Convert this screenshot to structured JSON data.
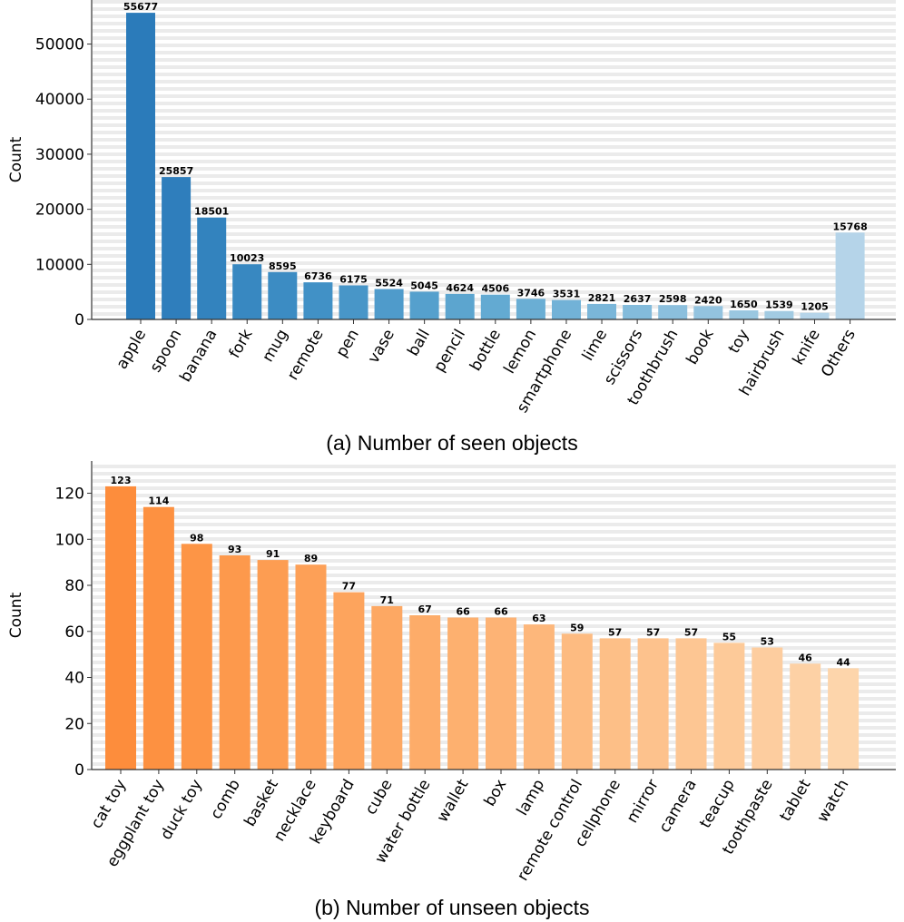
{
  "chart_data": [
    {
      "type": "bar",
      "title": "",
      "caption": "(a) Number of seen objects",
      "xlabel": "",
      "ylabel": "Count",
      "ylim": [
        0,
        58000
      ],
      "yticks": [
        0,
        10000,
        20000,
        30000,
        40000,
        50000
      ],
      "grid": "horizontal dashed",
      "palette": "blues",
      "colors": [
        "#2b7bba",
        "#2f7ebc",
        "#3383be",
        "#3888c1",
        "#3c8cc3",
        "#4191c6",
        "#4896c8",
        "#4f9bcb",
        "#55a0cd",
        "#5ca5cf",
        "#63aad2",
        "#6aaed4",
        "#72b2d7",
        "#7ab6d9",
        "#83bbdb",
        "#8bbfdd",
        "#93c3df",
        "#9ac7e0",
        "#a2cbe2",
        "#b5d4e9"
      ],
      "categories": [
        "apple",
        "spoon",
        "banana",
        "fork",
        "mug",
        "remote",
        "pen",
        "vase",
        "ball",
        "pencil",
        "bottle",
        "lemon",
        "smartphone",
        "lime",
        "scissors",
        "toothbrush",
        "book",
        "toy",
        "hairbrush",
        "knife",
        "Others"
      ],
      "values": [
        55677,
        25857,
        18501,
        10023,
        8595,
        6736,
        6175,
        5524,
        5045,
        4624,
        4506,
        3746,
        3531,
        2821,
        2637,
        2598,
        2420,
        1650,
        1539,
        1205,
        15768
      ]
    },
    {
      "type": "bar",
      "title": "",
      "caption": "(b) Number of unseen objects",
      "xlabel": "",
      "ylabel": "Count",
      "ylim": [
        0,
        134
      ],
      "yticks": [
        0,
        20,
        40,
        60,
        80,
        100,
        120
      ],
      "grid": "horizontal dashed",
      "palette": "oranges",
      "colors": [
        "#fd8d3c",
        "#fd9141",
        "#fd9546",
        "#fd994c",
        "#fd9d52",
        "#fda057",
        "#fda45d",
        "#fda863",
        "#fdac69",
        "#fdb06f",
        "#fdb375",
        "#fdb77b",
        "#fdbb81",
        "#fdbf87",
        "#fdc28d",
        "#fdc693",
        "#fdca99",
        "#fdcd9f",
        "#fdd1a5",
        "#fdd5ab"
      ],
      "categories": [
        "cat toy",
        "eggplant toy",
        "duck toy",
        "comb",
        "basket",
        "necklace",
        "keyboard",
        "cube",
        "water bottle",
        "wallet",
        "box",
        "lamp",
        "remote control",
        "cellphone",
        "mirror",
        "camera",
        "teacup",
        "toothpaste",
        "tablet",
        "watch"
      ],
      "values": [
        123,
        114,
        98,
        93,
        91,
        89,
        77,
        71,
        67,
        66,
        66,
        63,
        59,
        57,
        57,
        57,
        55,
        53,
        46,
        44
      ]
    }
  ]
}
